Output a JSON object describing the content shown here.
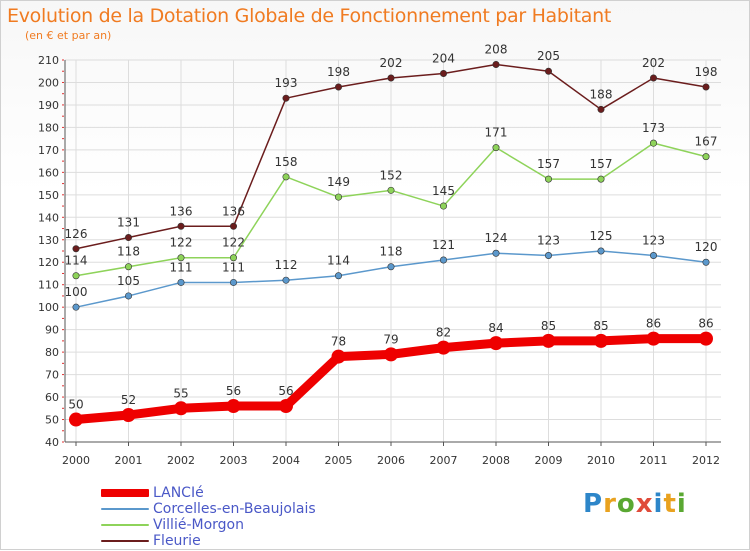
{
  "colors": {
    "title": "#f07b21",
    "axis": "#555555",
    "grid": "#dddddd",
    "legend_text": "#4a58c7",
    "lancie": "#ee0000",
    "corcelles": "#5b98cc",
    "villie": "#8ed35a",
    "fleurie": "#6b1d1d"
  },
  "logo": {
    "text": "Proxiti",
    "letters": [
      "P",
      "r",
      "o",
      "x",
      "i",
      "t",
      "i"
    ]
  },
  "chart_data": {
    "type": "line",
    "title": "Evolution de la Dotation Globale de Fonctionnement par Habitant",
    "subtitle": "(en € et par an)",
    "xlabel": "",
    "ylabel": "",
    "ylim": [
      40,
      210
    ],
    "yticks": [
      40,
      50,
      60,
      70,
      80,
      90,
      100,
      110,
      120,
      130,
      140,
      150,
      160,
      170,
      180,
      190,
      200,
      210
    ],
    "categories": [
      "2000",
      "2001",
      "2002",
      "2003",
      "2004",
      "2005",
      "2006",
      "2007",
      "2008",
      "2009",
      "2010",
      "2011",
      "2012"
    ],
    "grid": true,
    "legend_position": "bottom-left",
    "series": [
      {
        "name": "LANCIé",
        "key": "lancie",
        "emphasis": true,
        "values": [
          50,
          52,
          55,
          56,
          56,
          78,
          79,
          82,
          84,
          85,
          85,
          86,
          86
        ]
      },
      {
        "name": "Corcelles-en-Beaujolais",
        "key": "corcelles",
        "emphasis": false,
        "values": [
          100,
          105,
          111,
          111,
          112,
          114,
          118,
          121,
          124,
          123,
          125,
          123,
          120
        ]
      },
      {
        "name": "Villié-Morgon",
        "key": "villie",
        "emphasis": false,
        "values": [
          114,
          118,
          122,
          122,
          158,
          149,
          152,
          145,
          171,
          157,
          157,
          173,
          167
        ]
      },
      {
        "name": "Fleurie",
        "key": "fleurie",
        "emphasis": false,
        "values": [
          126,
          131,
          136,
          136,
          193,
          198,
          202,
          204,
          208,
          205,
          188,
          202,
          198
        ]
      }
    ]
  }
}
